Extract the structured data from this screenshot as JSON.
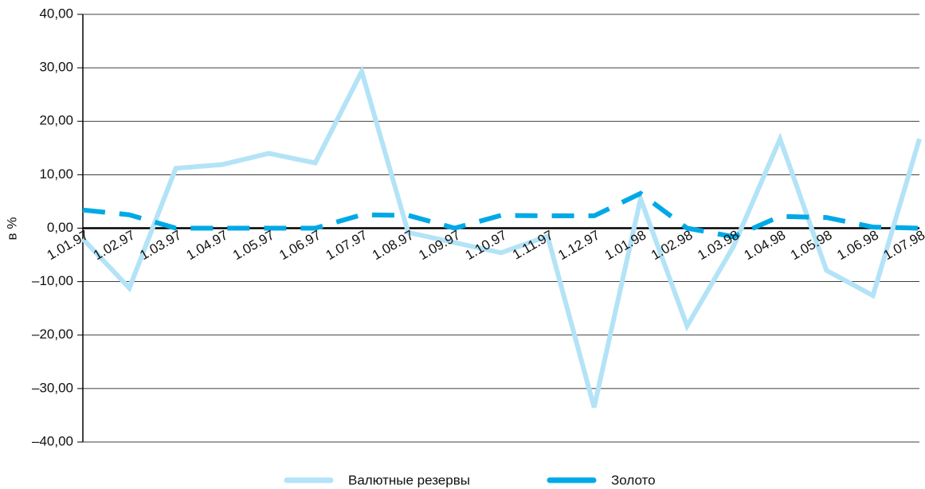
{
  "chart_data": {
    "type": "line",
    "y_label": "в %",
    "categories": [
      "1.01.97",
      "1.02.97",
      "1.03.97",
      "1.04.97",
      "1.05.97",
      "1.06.97",
      "1.07.97",
      "1.08.97",
      "1.09.97",
      "1.10.97",
      "1.11.97",
      "1.12.97",
      "1.01.98",
      "1.02.98",
      "1.03.98",
      "1.04.98",
      "1.05.98",
      "1.06.98",
      "1.07.98"
    ],
    "series": [
      {
        "name": "Валютные резервы",
        "color": "#b3e3f7",
        "dash": false,
        "values": [
          -2,
          -11.2,
          11.2,
          11.9,
          14,
          12.2,
          29.3,
          -0.8,
          -2.7,
          -4.6,
          -1.5,
          -33.5,
          5.5,
          -18.3,
          -3.4,
          16.7,
          -7.9,
          -12.6,
          16.7
        ]
      },
      {
        "name": "Золото",
        "color": "#00a9e6",
        "dash": true,
        "values": [
          3.4,
          2.5,
          0,
          0,
          0,
          0,
          2.5,
          2.4,
          0,
          2.4,
          2.3,
          2.3,
          6.5,
          0,
          -1.6,
          2.2,
          2.0,
          0.2,
          0
        ]
      }
    ],
    "ylim": [
      -40,
      40
    ],
    "yticks": [
      {
        "value": -40,
        "label": "–40,00"
      },
      {
        "value": -30,
        "label": "–30,00"
      },
      {
        "value": -20,
        "label": "–20,00"
      },
      {
        "value": -10,
        "label": "–10,00"
      },
      {
        "value": 0,
        "label": "0,00"
      },
      {
        "value": 10,
        "label": "10,00"
      },
      {
        "value": 20,
        "label": "20,00"
      },
      {
        "value": 30,
        "label": "30,00"
      },
      {
        "value": 40,
        "label": "40,00"
      }
    ],
    "grid": true,
    "legend": "bottom"
  }
}
